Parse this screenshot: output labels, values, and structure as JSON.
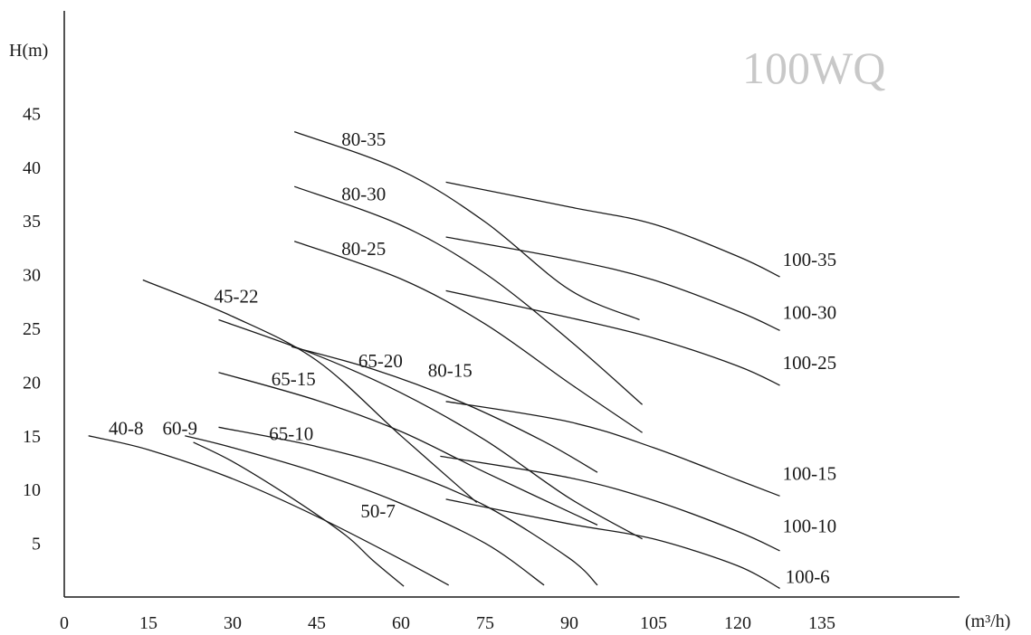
{
  "chart_data": {
    "type": "line",
    "title": "100WQ",
    "xlabel": "(m³/h)",
    "ylabel": "H(m)",
    "xlim": [
      0,
      147
    ],
    "ylim": [
      0,
      55
    ],
    "xticks": [
      "0",
      "15",
      "30",
      "45",
      "60",
      "75",
      "90",
      "105",
      "120",
      "135"
    ],
    "yticks": [
      "5",
      "10",
      "15",
      "20",
      "25",
      "30",
      "35",
      "40",
      "45"
    ],
    "grid": false,
    "series": [
      {
        "name": "40-8",
        "points": [
          [
            4.3,
            15.0
          ],
          [
            15,
            13.7
          ],
          [
            30,
            11.0
          ],
          [
            45,
            7.5
          ],
          [
            60,
            3.5
          ],
          [
            68.5,
            1.1
          ]
        ],
        "label": [
          7.9,
          15.1
        ]
      },
      {
        "name": "50-7",
        "points": [
          [
            23,
            14.4
          ],
          [
            30,
            12.6
          ],
          [
            40,
            9.4
          ],
          [
            50,
            5.8
          ],
          [
            55,
            3.4
          ],
          [
            60.5,
            1.0
          ]
        ],
        "label": [
          52.8,
          7.4
        ]
      },
      {
        "name": "60-9",
        "points": [
          [
            21.5,
            15.0
          ],
          [
            30,
            13.9
          ],
          [
            45,
            11.6
          ],
          [
            60,
            8.7
          ],
          [
            75,
            5.0
          ],
          [
            85.5,
            1.1
          ]
        ],
        "label": [
          17.5,
          15.1
        ]
      },
      {
        "name": "65-10",
        "points": [
          [
            27.5,
            15.8
          ],
          [
            45,
            14.0
          ],
          [
            60,
            11.8
          ],
          [
            75,
            8.5
          ],
          [
            90,
            3.6
          ],
          [
            95,
            1.1
          ]
        ],
        "label": [
          36.5,
          14.6
        ]
      },
      {
        "name": "45-22",
        "points": [
          [
            14,
            29.5
          ],
          [
            30,
            26.1
          ],
          [
            45,
            22.0
          ],
          [
            60,
            15.0
          ],
          [
            73.5,
            8.8
          ]
        ],
        "label": [
          26.7,
          27.4
        ]
      },
      {
        "name": "65-15",
        "points": [
          [
            27.5,
            20.9
          ],
          [
            45,
            18.3
          ],
          [
            60,
            15.4
          ],
          [
            75,
            11.6
          ],
          [
            95,
            6.7
          ]
        ],
        "label": [
          36.9,
          19.7
        ]
      },
      {
        "name": "65-20",
        "points": [
          [
            27.5,
            25.8
          ],
          [
            45,
            22.5
          ],
          [
            60,
            19.0
          ],
          [
            75,
            14.6
          ],
          [
            90,
            9.2
          ],
          [
            103,
            5.4
          ]
        ],
        "label": [
          52.4,
          21.4
        ]
      },
      {
        "name": "80-15",
        "points": [
          [
            40.5,
            23.3
          ],
          [
            55,
            21.2
          ],
          [
            70,
            18.3
          ],
          [
            85,
            14.6
          ],
          [
            95,
            11.6
          ]
        ],
        "label": [
          64.8,
          20.5
        ]
      },
      {
        "name": "80-25",
        "points": [
          [
            41,
            33.1
          ],
          [
            60,
            29.6
          ],
          [
            75,
            25.4
          ],
          [
            90,
            19.9
          ],
          [
            103,
            15.3
          ]
        ],
        "label": [
          49.4,
          31.8
        ]
      },
      {
        "name": "80-30",
        "points": [
          [
            41,
            38.2
          ],
          [
            60,
            34.6
          ],
          [
            75,
            30.1
          ],
          [
            90,
            23.9
          ],
          [
            103,
            17.9
          ]
        ],
        "label": [
          49.4,
          36.9
        ]
      },
      {
        "name": "80-35",
        "points": [
          [
            41,
            43.3
          ],
          [
            60,
            39.7
          ],
          [
            75,
            34.9
          ],
          [
            90,
            28.6
          ],
          [
            102.5,
            25.8
          ]
        ],
        "label": [
          49.4,
          42.0
        ]
      },
      {
        "name": "100-6",
        "points": [
          [
            68,
            9.1
          ],
          [
            90,
            6.8
          ],
          [
            105,
            5.4
          ],
          [
            120,
            2.9
          ],
          [
            127.5,
            0.8
          ]
        ],
        "label": [
          128.5,
          1.3
        ]
      },
      {
        "name": "100-10",
        "points": [
          [
            67,
            13.1
          ],
          [
            90,
            11.1
          ],
          [
            105,
            9.0
          ],
          [
            120,
            6.1
          ],
          [
            127.5,
            4.3
          ]
        ],
        "label": [
          128,
          6.0
        ]
      },
      {
        "name": "100-15",
        "points": [
          [
            68,
            18.2
          ],
          [
            90,
            16.3
          ],
          [
            105,
            13.9
          ],
          [
            120,
            10.9
          ],
          [
            127.5,
            9.4
          ]
        ],
        "label": [
          128,
          10.9
        ]
      },
      {
        "name": "100-25",
        "points": [
          [
            68,
            28.5
          ],
          [
            90,
            26.0
          ],
          [
            105,
            24.1
          ],
          [
            120,
            21.5
          ],
          [
            127.5,
            19.7
          ]
        ],
        "label": [
          128,
          21.2
        ]
      },
      {
        "name": "100-30",
        "points": [
          [
            68,
            33.5
          ],
          [
            90,
            31.4
          ],
          [
            105,
            29.5
          ],
          [
            120,
            26.6
          ],
          [
            127.5,
            24.8
          ]
        ],
        "label": [
          128,
          25.9
        ]
      },
      {
        "name": "100-35",
        "points": [
          [
            68,
            38.6
          ],
          [
            90,
            36.3
          ],
          [
            105,
            34.7
          ],
          [
            120,
            31.7
          ],
          [
            127.5,
            29.8
          ]
        ],
        "label": [
          128,
          30.8
        ]
      }
    ]
  }
}
